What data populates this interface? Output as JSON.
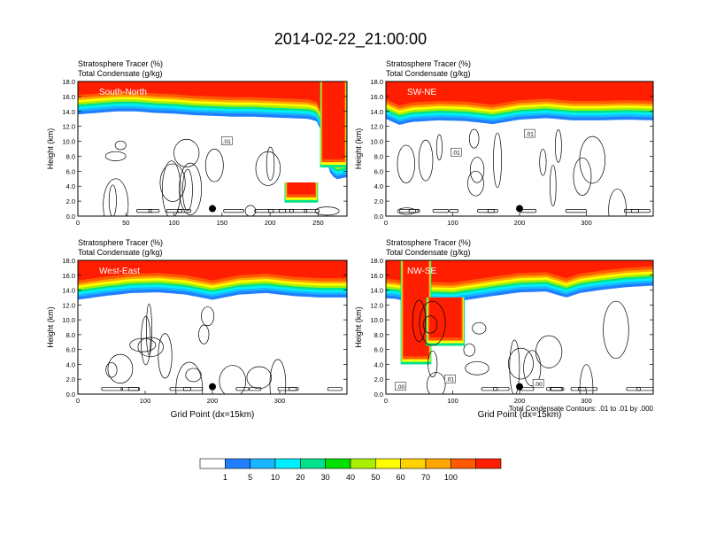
{
  "figure": {
    "title": "2014-02-22_21:00:00",
    "footnote": "Total Condensate Contours: .01 to .01 by .000",
    "colorbar": {
      "labels": [
        "1",
        "5",
        "10",
        "20",
        "30",
        "40",
        "50",
        "60",
        "70",
        "100"
      ],
      "colors": [
        "#ffffff",
        "#1f7fff",
        "#18b6ff",
        "#00eeff",
        "#00e38c",
        "#00e000",
        "#a8f000",
        "#ffff00",
        "#ffd200",
        "#ffa500",
        "#ff5a00",
        "#ff1e00"
      ]
    }
  },
  "chart_data": [
    {
      "type": "heatmap",
      "panel_label": "South-North",
      "subtitle_left": [
        "Stratosphere Tracer   (%)",
        "Total Condensate   (g/kg)"
      ],
      "ylabel": "Height (km)",
      "xlabel": "",
      "xlim": [
        0,
        280
      ],
      "ylim": [
        0,
        18
      ],
      "xticks": [
        "0",
        "50",
        "100",
        "150",
        "200",
        "250"
      ],
      "yticks": [
        "0.0",
        "2.0",
        "4.0",
        "6.0",
        "8.0",
        "10.0",
        "12.0",
        "14.0",
        "16.0",
        "18.0"
      ],
      "contour_labels": [
        {
          "text": ".01",
          "x": 155,
          "y": 10.0
        }
      ],
      "marker": {
        "x": 140,
        "y": 1.0
      },
      "tropopause": [
        [
          0,
          15.2
        ],
        [
          20,
          15.4
        ],
        [
          40,
          15.6
        ],
        [
          60,
          15.6
        ],
        [
          80,
          15.4
        ],
        [
          100,
          15.3
        ],
        [
          120,
          15.1
        ],
        [
          140,
          15.0
        ],
        [
          160,
          14.9
        ],
        [
          180,
          14.9
        ],
        [
          200,
          14.8
        ],
        [
          220,
          14.7
        ],
        [
          240,
          14.6
        ],
        [
          250,
          14.2
        ],
        [
          255,
          12.0
        ],
        [
          258,
          9.5
        ],
        [
          262,
          7.5
        ],
        [
          268,
          6.5
        ],
        [
          280,
          6.8
        ]
      ],
      "intrusions": [
        {
          "x0": 252,
          "x1": 280,
          "y0": 6.5,
          "y1": 18
        },
        {
          "x0": 215,
          "x1": 250,
          "y0": 1.8,
          "y1": 4.5
        }
      ]
    },
    {
      "type": "heatmap",
      "panel_label": "SW-NE",
      "subtitle_left": [
        "Stratosphere Tracer   (%)",
        "Total Condensate   (g/kg)"
      ],
      "ylabel": "Height (km)",
      "xlabel": "",
      "xlim": [
        0,
        400
      ],
      "ylim": [
        0,
        18
      ],
      "xticks": [
        "0",
        "100",
        "200",
        "300"
      ],
      "yticks": [
        "0.0",
        "2.0",
        "4.0",
        "6.0",
        "8.0",
        "10.0",
        "12.0",
        "14.0",
        "16.0",
        "18.0"
      ],
      "contour_labels": [
        {
          "text": ".01",
          "x": 215,
          "y": 11.0
        },
        {
          "text": ".01",
          "x": 105,
          "y": 8.5
        }
      ],
      "marker": {
        "x": 200,
        "y": 1.0
      },
      "tropopause": [
        [
          0,
          14.6
        ],
        [
          20,
          13.8
        ],
        [
          40,
          14.2
        ],
        [
          80,
          14.4
        ],
        [
          120,
          14.3
        ],
        [
          160,
          13.9
        ],
        [
          200,
          14.5
        ],
        [
          240,
          14.7
        ],
        [
          280,
          14.4
        ],
        [
          320,
          14.4
        ],
        [
          360,
          14.5
        ],
        [
          400,
          14.4
        ]
      ],
      "intrusions": []
    },
    {
      "type": "heatmap",
      "panel_label": "West-East",
      "subtitle_left": [
        "Stratosphere Tracer   (%)",
        "Total Condensate   (g/kg)"
      ],
      "ylabel": "Height (km)",
      "xlabel": "Grid Point (dx=15km)",
      "xlim": [
        0,
        400
      ],
      "ylim": [
        0,
        18
      ],
      "xticks": [
        "0",
        "100",
        "200",
        "300"
      ],
      "yticks": [
        "0.0",
        "2.0",
        "4.0",
        "6.0",
        "8.0",
        "10.0",
        "12.0",
        "14.0",
        "16.0",
        "18.0"
      ],
      "contour_labels": [],
      "marker": {
        "x": 200,
        "y": 1.0
      },
      "tropopause": [
        [
          0,
          14.3
        ],
        [
          40,
          14.8
        ],
        [
          80,
          15.2
        ],
        [
          120,
          15.3
        ],
        [
          160,
          15.0
        ],
        [
          200,
          14.3
        ],
        [
          240,
          15.0
        ],
        [
          280,
          15.2
        ],
        [
          320,
          14.8
        ],
        [
          360,
          14.6
        ],
        [
          400,
          14.6
        ]
      ],
      "intrusions": []
    },
    {
      "type": "heatmap",
      "panel_label": "NW-SE",
      "subtitle_left": [
        "Stratosphere Tracer   (%)",
        "Total Condensate   (g/kg)"
      ],
      "ylabel": "Height (km)",
      "xlabel": "Grid Point (dx=15km)",
      "xlim": [
        0,
        400
      ],
      "ylim": [
        0,
        18
      ],
      "xticks": [
        "0",
        "100",
        "200",
        "300"
      ],
      "yticks": [
        "0.0",
        "2.0",
        "4.0",
        "6.0",
        "8.0",
        "10.0",
        "12.0",
        "14.0",
        "16.0",
        "18.0"
      ],
      "contour_labels": [
        {
          "text": ".01",
          "x": 96,
          "y": 2.0
        },
        {
          "text": ".00",
          "x": 22,
          "y": 1.0
        },
        {
          "text": ".00",
          "x": 228,
          "y": 1.4
        }
      ],
      "marker": {
        "x": 200,
        "y": 1.0
      },
      "tropopause": [
        [
          0,
          14.5
        ],
        [
          15,
          14.4
        ],
        [
          25,
          14.2
        ],
        [
          100,
          14.0
        ],
        [
          160,
          14.8
        ],
        [
          200,
          15.3
        ],
        [
          240,
          15.4
        ],
        [
          270,
          14.6
        ],
        [
          290,
          15.2
        ],
        [
          320,
          15.6
        ],
        [
          360,
          16.0
        ],
        [
          400,
          16.2
        ]
      ],
      "intrusions": [
        {
          "x0": 22,
          "x1": 68,
          "y0": 4.0,
          "y1": 18
        },
        {
          "x0": 60,
          "x1": 118,
          "y0": 6.5,
          "y1": 13
        }
      ]
    }
  ]
}
